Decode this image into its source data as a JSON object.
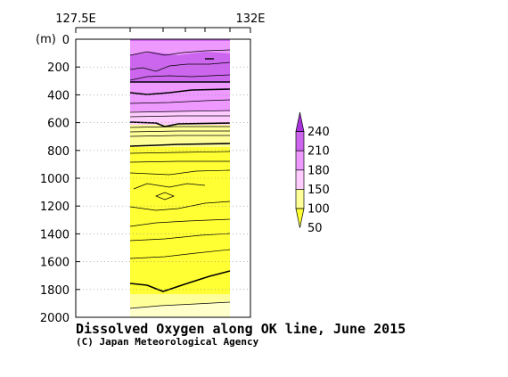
{
  "chart_data": {
    "type": "heatmap",
    "title": "Dissolved Oxygen along OK line, June 2015",
    "credit": "(C) Japan Meteorological Agency",
    "ylabel": "(m)",
    "x_top_labels": [
      "127.5E",
      "132E"
    ],
    "y_ticks": [
      "0",
      "200",
      "400",
      "600",
      "800",
      "1000",
      "1200",
      "1400",
      "1600",
      "1800",
      "2000"
    ],
    "ylim": [
      0,
      2000
    ],
    "grid": "dotted",
    "colorbar": {
      "placement": "right",
      "labels": [
        "50",
        "100",
        "150",
        "180",
        "210",
        "240"
      ],
      "colors": [
        "#ffff33",
        "#ffff99",
        "#ffccff",
        "#ee99ff",
        "#cc66ee",
        "#aa33dd"
      ]
    }
  }
}
